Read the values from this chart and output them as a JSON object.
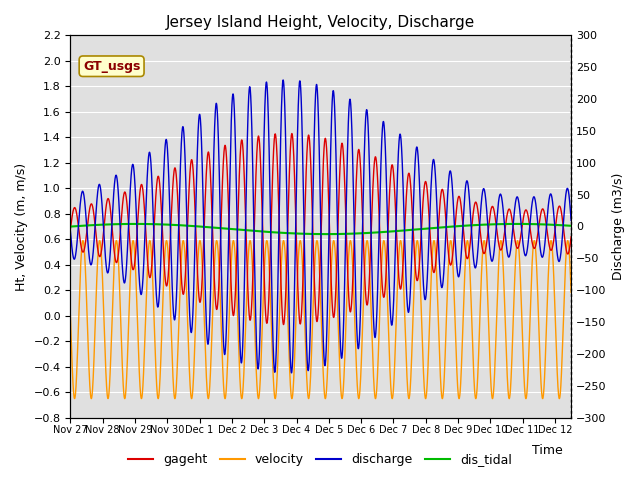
{
  "title": "Jersey Island Height, Velocity, Discharge",
  "xlabel": "Time",
  "ylabel_left": "Ht, Velocity (m, m/s)",
  "ylabel_right": "Discharge (m3/s)",
  "ylim_left": [
    -0.8,
    2.2
  ],
  "ylim_right": [
    -300,
    300
  ],
  "yticks_left": [
    -0.8,
    -0.6,
    -0.4,
    -0.2,
    0.0,
    0.2,
    0.4,
    0.6,
    0.8,
    1.0,
    1.2,
    1.4,
    1.6,
    1.8,
    2.0,
    2.2
  ],
  "yticks_right": [
    -300,
    -250,
    -200,
    -150,
    -100,
    -50,
    0,
    50,
    100,
    150,
    200,
    250,
    300
  ],
  "start_day": 0,
  "end_day": 15.5,
  "color_gageht": "#dd0000",
  "color_velocity": "#ff9900",
  "color_discharge": "#0000cc",
  "color_dis_tidal": "#00bb00",
  "color_background": "#e0e0e0",
  "annotation_text": "GT_usgs",
  "annotation_color": "#8b0000",
  "annotation_bg": "#ffffcc",
  "legend_labels": [
    "gageht",
    "velocity",
    "discharge",
    "dis_tidal"
  ],
  "grid_color": "#ffffff",
  "tidal_period_hours": 12.42,
  "num_points": 4000
}
